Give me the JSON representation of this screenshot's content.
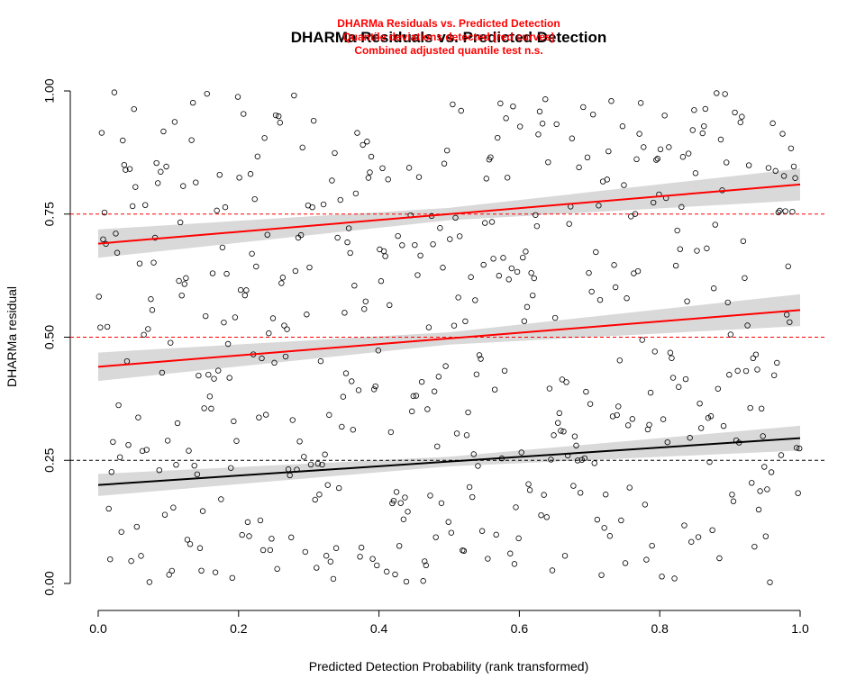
{
  "chart_data": {
    "type": "scatter",
    "title": "DHARMa Residuals vs. Predicted Detection",
    "test_title": "DHARMa Residuals vs. Predicted Detection",
    "test_line2": "Quantile deviations detected (red curves)",
    "test_line3": "Combined adjusted quantile test n.s.",
    "xlabel": "Predicted Detection Probability (rank transformed)",
    "ylabel": "DHARMa residual",
    "xlim": [
      0,
      1
    ],
    "ylim": [
      0,
      1
    ],
    "x_ticks": [
      "0.0",
      "0.2",
      "0.4",
      "0.6",
      "0.8",
      "1.0"
    ],
    "y_ticks": [
      "0.00",
      "0.25",
      "0.50",
      "0.75",
      "1.00"
    ],
    "reference_lines": [
      0.25,
      0.5,
      0.75
    ],
    "point_count": 500,
    "point_seed": 42,
    "series": [
      {
        "quantile": 0.25,
        "intercept": 0.2,
        "slope": 0.095,
        "ci": 0.014,
        "color": "#000000"
      },
      {
        "quantile": 0.5,
        "intercept": 0.44,
        "slope": 0.115,
        "ci": 0.018,
        "color": "#ff0000"
      },
      {
        "quantile": 0.75,
        "intercept": 0.69,
        "slope": 0.12,
        "ci": 0.018,
        "color": "#ff0000"
      }
    ],
    "colors": {
      "points": "#000000",
      "test_text": "#ff0000",
      "ref_25": "#000000",
      "ref_50_75": "#ff0000",
      "ci_band": "#d9d9d9"
    }
  }
}
